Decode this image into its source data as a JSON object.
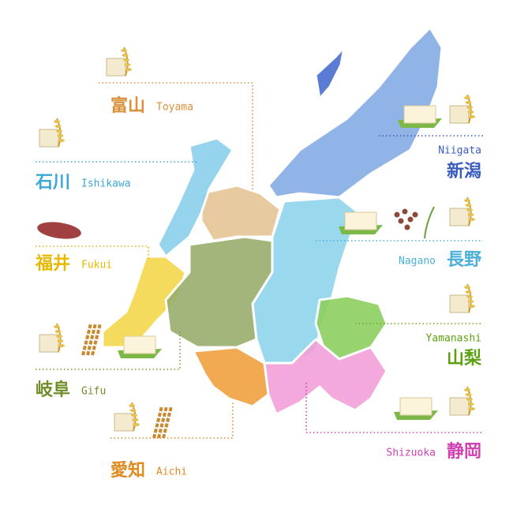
{
  "prefectures": [
    {
      "kanji": "富山",
      "romaji": "Toyama"
    },
    {
      "kanji": "石川",
      "romaji": "Ishikawa"
    },
    {
      "kanji": "福井",
      "romaji": "Fukui"
    },
    {
      "kanji": "岐阜",
      "romaji": "Gifu"
    },
    {
      "kanji": "愛知",
      "romaji": "Aichi"
    },
    {
      "kanji": "新潟",
      "romaji": "Niigata"
    },
    {
      "kanji": "長野",
      "romaji": "Nagano"
    },
    {
      "kanji": "山梨",
      "romaji": "Yamanashi"
    },
    {
      "kanji": "静岡",
      "romaji": "Shizuoka"
    }
  ]
}
